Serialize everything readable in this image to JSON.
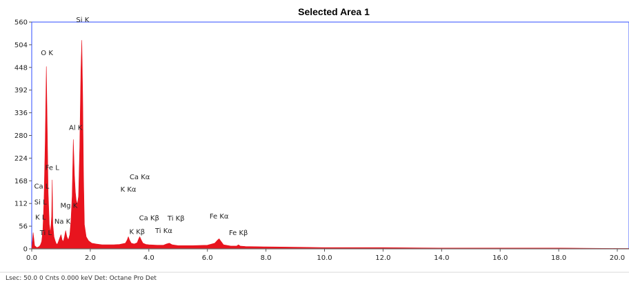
{
  "chart_data": {
    "type": "area",
    "title": "Selected Area 1",
    "xlabel": "",
    "ylabel": "",
    "xlim": [
      0,
      20.4
    ],
    "ylim": [
      0,
      560
    ],
    "x_ticks": [
      "0.0",
      "2.0",
      "4.0",
      "6.0",
      "8.0",
      "10.0",
      "12.0",
      "14.0",
      "16.0",
      "18.0",
      "20.0"
    ],
    "y_ticks": [
      "0",
      "56",
      "112",
      "168",
      "224",
      "280",
      "336",
      "392",
      "448",
      "504",
      "560"
    ],
    "grid": false,
    "series": [
      {
        "color": "#e8141e",
        "x": [
          0.0,
          0.05,
          0.1,
          0.18,
          0.26,
          0.3,
          0.34,
          0.38,
          0.42,
          0.46,
          0.5,
          0.53,
          0.56,
          0.6,
          0.64,
          0.68,
          0.7,
          0.72,
          0.76,
          0.8,
          0.84,
          0.88,
          0.92,
          0.96,
          1.0,
          1.04,
          1.08,
          1.12,
          1.16,
          1.2,
          1.25,
          1.3,
          1.34,
          1.38,
          1.42,
          1.46,
          1.49,
          1.52,
          1.56,
          1.6,
          1.64,
          1.68,
          1.71,
          1.74,
          1.77,
          1.8,
          1.86,
          1.94,
          2.05,
          2.2,
          2.4,
          2.6,
          2.8,
          3.0,
          3.2,
          3.26,
          3.3,
          3.34,
          3.4,
          3.5,
          3.6,
          3.65,
          3.69,
          3.74,
          3.8,
          3.9,
          4.0,
          4.3,
          4.5,
          4.6,
          4.7,
          4.8,
          5.0,
          5.5,
          6.0,
          6.25,
          6.35,
          6.4,
          6.45,
          6.55,
          6.8,
          7.0,
          7.06,
          7.12,
          7.3,
          8.0,
          9.0,
          10.0,
          12.0,
          14.0,
          16.0,
          18.0,
          20.0,
          20.4
        ],
        "y": [
          0,
          40,
          8,
          3,
          6,
          10,
          18,
          45,
          120,
          260,
          450,
          300,
          140,
          60,
          40,
          80,
          170,
          60,
          30,
          20,
          12,
          12,
          20,
          28,
          35,
          22,
          18,
          30,
          45,
          30,
          22,
          35,
          70,
          130,
          270,
          180,
          140,
          120,
          110,
          130,
          250,
          440,
          515,
          380,
          180,
          60,
          30,
          20,
          14,
          12,
          10,
          10,
          10,
          11,
          14,
          22,
          30,
          22,
          14,
          12,
          15,
          24,
          30,
          22,
          14,
          11,
          10,
          9,
          9,
          12,
          14,
          10,
          8,
          8,
          9,
          14,
          22,
          25,
          20,
          10,
          7,
          7,
          10,
          7,
          6,
          5,
          4,
          3,
          3,
          2,
          2,
          2,
          1,
          1
        ]
      }
    ],
    "peak_labels": [
      {
        "text": "Si K",
        "x": 1.74,
        "y": 560
      },
      {
        "text": "O K",
        "x": 0.52,
        "y": 478
      },
      {
        "text": "Al K",
        "x": 1.5,
        "y": 294
      },
      {
        "text": "Fe L",
        "x": 0.7,
        "y": 195
      },
      {
        "text": "Ca L",
        "x": 0.34,
        "y": 149
      },
      {
        "text": "Si L",
        "x": 0.3,
        "y": 110
      },
      {
        "text": "K L",
        "x": 0.3,
        "y": 72
      },
      {
        "text": "Ti L",
        "x": 0.48,
        "y": 34
      },
      {
        "text": "Mg K",
        "x": 1.27,
        "y": 101
      },
      {
        "text": "Na K",
        "x": 1.05,
        "y": 62
      },
      {
        "text": "Ca Kα",
        "x": 3.69,
        "y": 172
      },
      {
        "text": "K Kα",
        "x": 3.3,
        "y": 141
      },
      {
        "text": "Ca Kβ",
        "x": 4.01,
        "y": 71
      },
      {
        "text": "Ti Kβ",
        "x": 4.93,
        "y": 70
      },
      {
        "text": "Fe Kα",
        "x": 6.4,
        "y": 75
      },
      {
        "text": "K Kβ",
        "x": 3.6,
        "y": 37
      },
      {
        "text": "Ti Kα",
        "x": 4.51,
        "y": 39
      },
      {
        "text": "Fe Kβ",
        "x": 7.06,
        "y": 34
      }
    ]
  },
  "status_bar": {
    "text": "Lsec: 50.0 0 Cnts  0.000 keV Det: Octane Pro Det"
  }
}
